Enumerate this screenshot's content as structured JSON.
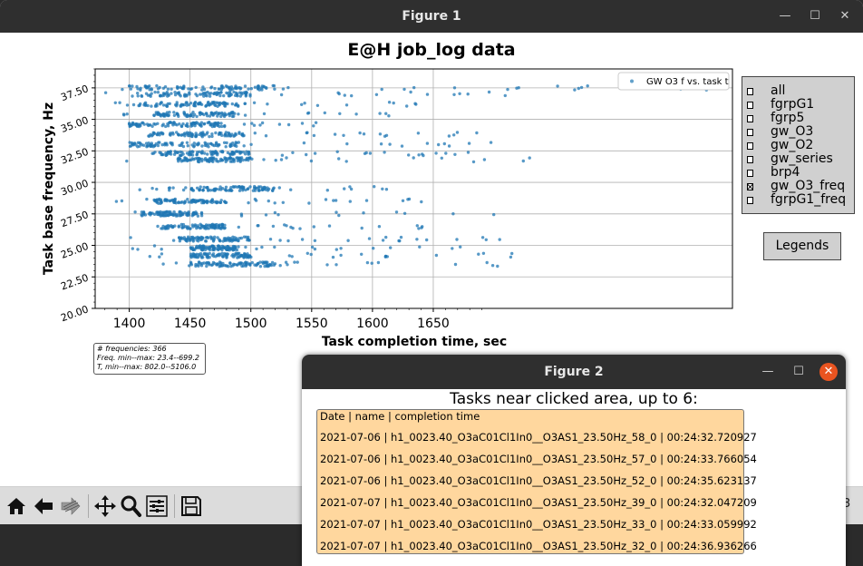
{
  "figure1": {
    "title": "Figure 1",
    "controls": {
      "minimize": "—",
      "maximize": "☐",
      "close": "✕"
    },
    "plot_title": "E@H job_log data",
    "stats": [
      "# frequencies: 366",
      "Freq. min--max: 23.4--699.2",
      "T, min--max: 802.0--5106.0"
    ],
    "checkboxes": [
      {
        "label": "all",
        "checked": false
      },
      {
        "label": "fgrpG1",
        "checked": false
      },
      {
        "label": "fgrp5",
        "checked": false
      },
      {
        "label": "gw_O3",
        "checked": false
      },
      {
        "label": "gw_O2",
        "checked": false
      },
      {
        "label": "gw_series",
        "checked": false
      },
      {
        "label": "brp4",
        "checked": false
      },
      {
        "label": "gw_O3_freq",
        "checked": true
      },
      {
        "label": "fgrpG1_freq",
        "checked": false
      }
    ],
    "legends_button": "Legends",
    "toolbar": [
      "home-icon",
      "back-icon",
      "forward-icon",
      "pan-icon",
      "zoom-icon",
      "configure-subplots-icon",
      "save-icon"
    ],
    "partial_readout": "3"
  },
  "chart_data": {
    "type": "scatter",
    "title": "E@H job_log data",
    "xlabel": "Task completion time, sec",
    "ylabel": "Task base frequency, Hz",
    "xlim": [
      1372,
      1896
    ],
    "ylim": [
      20.0,
      39.0
    ],
    "xticks": [
      1400,
      1450,
      1500,
      1550,
      1600,
      1650
    ],
    "yticks": [
      "20.00",
      "22.50",
      "25.00",
      "27.50",
      "30.00",
      "32.50",
      "35.00",
      "37.50"
    ],
    "ytick_values": [
      20.0,
      22.5,
      25.0,
      27.5,
      30.0,
      32.5,
      35.0,
      37.5
    ],
    "grid": true,
    "legend_position": "top-right",
    "color": "#1f77b4",
    "series": [
      {
        "name": "GW O3 f vs. task t",
        "bands": [
          {
            "y": 37.5,
            "core": [
              1400,
              1520
            ],
            "tail": [
              1375,
              1896
            ]
          },
          {
            "y": 37.0,
            "core": [
              1410,
              1500
            ],
            "tail": [
              1380,
              1790
            ]
          },
          {
            "y": 36.2,
            "core": [
              1405,
              1490
            ],
            "tail": [
              1385,
              1640
            ]
          },
          {
            "y": 35.4,
            "core": [
              1420,
              1490
            ],
            "tail": [
              1395,
              1620
            ]
          },
          {
            "y": 34.6,
            "core": [
              1400,
              1480
            ],
            "tail": [
              1400,
              1560
            ]
          },
          {
            "y": 33.8,
            "core": [
              1415,
              1495
            ],
            "tail": [
              1395,
              1700
            ]
          },
          {
            "y": 33.0,
            "core": [
              1400,
              1490
            ],
            "tail": [
              1390,
              1710
            ]
          },
          {
            "y": 32.3,
            "core": [
              1420,
              1500
            ],
            "tail": [
              1400,
              1680
            ]
          },
          {
            "y": 31.8,
            "core": [
              1440,
              1500
            ],
            "tail": [
              1395,
              1750
            ]
          },
          {
            "y": 29.5,
            "core": [
              1450,
              1520
            ],
            "tail": [
              1400,
              1620
            ]
          },
          {
            "y": 28.5,
            "core": [
              1420,
              1480
            ],
            "tail": [
              1380,
              1650
            ]
          },
          {
            "y": 27.5,
            "core": [
              1410,
              1460
            ],
            "tail": [
              1400,
              1700
            ]
          },
          {
            "y": 26.5,
            "core": [
              1425,
              1480
            ],
            "tail": [
              1400,
              1650
            ]
          },
          {
            "y": 25.5,
            "core": [
              1440,
              1500
            ],
            "tail": [
              1400,
              1720
            ]
          },
          {
            "y": 24.8,
            "core": [
              1450,
              1490
            ],
            "tail": [
              1400,
              1690
            ]
          },
          {
            "y": 24.2,
            "core": [
              1450,
              1500
            ],
            "tail": [
              1405,
              1720
            ]
          },
          {
            "y": 23.5,
            "core": [
              1450,
              1520
            ],
            "tail": [
              1400,
              1760
            ]
          }
        ]
      }
    ]
  },
  "figure2": {
    "title": "Figure 2",
    "controls": {
      "minimize": "—",
      "maximize": "☐",
      "close": "✕"
    },
    "heading": "Tasks near clicked area, up to 6:",
    "header_line": "Date | name | completion time",
    "tasks": [
      "2021-07-06 | h1_0023.40_O3aC01Cl1In0__O3AS1_23.50Hz_58_0 | 00:24:32.720927",
      "2021-07-06 | h1_0023.40_O3aC01Cl1In0__O3AS1_23.50Hz_57_0 | 00:24:33.766054",
      "2021-07-06 | h1_0023.40_O3aC01Cl1In0__O3AS1_23.50Hz_52_0 | 00:24:35.623137",
      "2021-07-07 | h1_0023.40_O3aC01Cl1In0__O3AS1_23.50Hz_39_0 | 00:24:32.047209",
      "2021-07-07 | h1_0023.40_O3aC01Cl1In0__O3AS1_23.50Hz_33_0 | 00:24:33.059992",
      "2021-07-07 | h1_0023.40_O3aC01Cl1In0__O3AS1_23.50Hz_32_0 | 00:24:36.936266"
    ]
  }
}
